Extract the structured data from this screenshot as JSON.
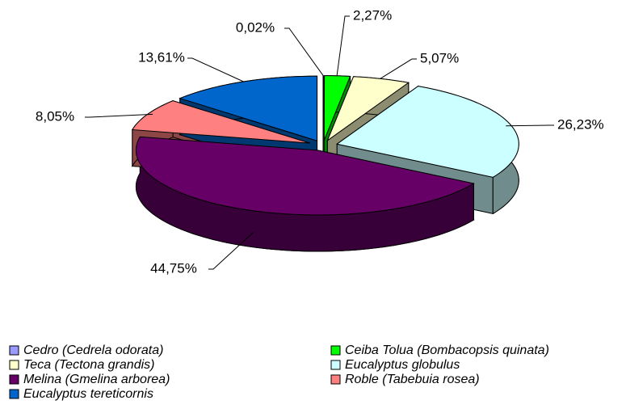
{
  "chart_data": {
    "type": "pie3d",
    "categories": [
      "Cedro (Cedrela odorata)",
      "Ceiba Tolua (Bombacopsis quinata)",
      "Teca (Tectona grandis)",
      "Eucalyptus globulus",
      "Melina (Gmelina arborea)",
      "Roble (Tabebuia rosea)",
      "Eucalyptus tereticornis"
    ],
    "values": [
      0.02,
      2.27,
      5.07,
      26.23,
      44.75,
      8.05,
      13.61
    ],
    "value_labels": [
      "0,02%",
      "2,27%",
      "5,07%",
      "26,23%",
      "44,75%",
      "8,05%",
      "13,61%"
    ],
    "colors": [
      "#9999ff",
      "#00ff00",
      "#ffffcc",
      "#ccffff",
      "#660066",
      "#ff8080",
      "#0066cc"
    ],
    "legend": "bottom"
  }
}
